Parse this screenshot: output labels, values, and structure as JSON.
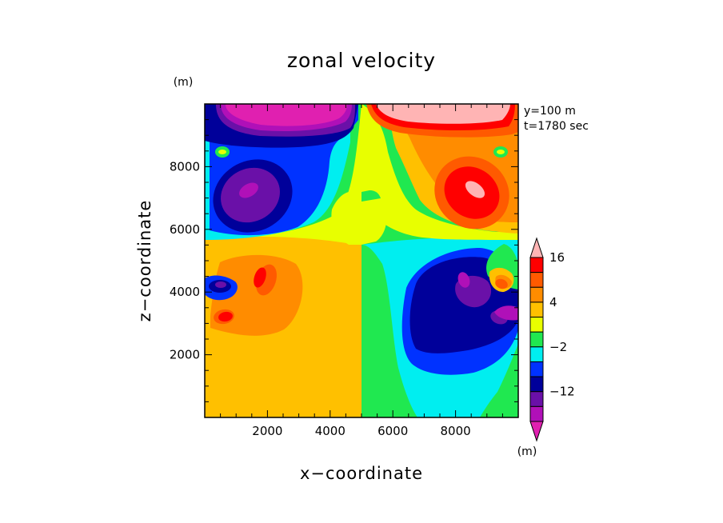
{
  "chart_data": {
    "type": "heatmap",
    "subtype": "filled-contour",
    "title": "zonal velocity",
    "xlabel": "x−coordinate",
    "ylabel": "z−coordinate",
    "x_unit": "(m)",
    "y_unit": "(m)",
    "xlim": [
      0,
      10000
    ],
    "ylim": [
      0,
      10000
    ],
    "x_ticks": [
      2000,
      4000,
      6000,
      8000
    ],
    "y_ticks": [
      2000,
      4000,
      6000,
      8000
    ],
    "x_tick_labels": [
      "2000",
      "4000",
      "6000",
      "8000"
    ],
    "y_tick_labels": [
      "2000",
      "4000",
      "6000",
      "8000"
    ],
    "annotation": [
      "y=100 m",
      "t=1780 sec"
    ],
    "colorbar": {
      "levels": [
        -20,
        -16,
        -12,
        -8,
        -4,
        -2,
        0,
        2,
        4,
        8,
        12,
        16,
        20
      ],
      "labels": [
        "16",
        "4",
        "−2",
        "−12"
      ],
      "label_values": [
        16,
        4,
        -2,
        -12
      ],
      "colors_low_to_high": [
        "#e020b0",
        "#b010b8",
        "#6a10a8",
        "#00009a",
        "#0032ff",
        "#00eef0",
        "#20e850",
        "#e8ff00",
        "#ffc000",
        "#ff8c00",
        "#ff5a00",
        "#ff0000",
        "#ffb4b4"
      ],
      "extend": "both"
    },
    "features": [
      {
        "name": "top jet west",
        "sign": "negative",
        "extreme_color": "#e020b0",
        "x": 2000,
        "z": 9700
      },
      {
        "name": "top jet east",
        "sign": "positive",
        "extreme_color": "#ffb4b4",
        "x": 8000,
        "z": 9700
      },
      {
        "name": "upper vortex west",
        "sign": "negative",
        "extreme_color": "#b010b8",
        "x": 1500,
        "z": 7200
      },
      {
        "name": "upper vortex east",
        "sign": "positive",
        "extreme_color": "#ffb4b4",
        "x": 8500,
        "z": 7200
      },
      {
        "name": "lower vortex west",
        "sign": "positive",
        "extreme_color": "#ff0000",
        "x": 1700,
        "z": 4400
      },
      {
        "name": "lower vortex east",
        "sign": "negative",
        "extreme_color": "#6a10a8",
        "x": 8300,
        "z": 4400
      }
    ],
    "grid": false,
    "legend": "colorbar right"
  }
}
